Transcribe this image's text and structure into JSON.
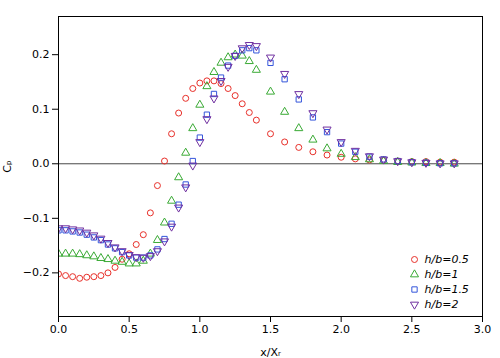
{
  "chart_data": {
    "type": "scatter",
    "xlabel": "x/Xᵣ",
    "ylabel": "Cₚ",
    "xlim": [
      0,
      3
    ],
    "ylim": [
      -0.28,
      0.27
    ],
    "xticks": [
      {
        "value": 0,
        "label": "0.0"
      },
      0.5,
      {
        "value": 1,
        "label": "1.0"
      },
      1.5,
      {
        "value": 2,
        "label": "2.0"
      },
      2.5,
      {
        "value": 3,
        "label": "3.0"
      }
    ],
    "yticks": [
      {
        "value": -0.2,
        "label": "−0.2"
      },
      {
        "value": -0.1,
        "label": "−0.1"
      },
      {
        "value": 0,
        "label": "0.0"
      },
      0.1,
      0.2
    ],
    "grid": false,
    "legend": "lower right",
    "hlines": [
      0
    ],
    "x": [
      0.0,
      0.05,
      0.1,
      0.15,
      0.2,
      0.25,
      0.3,
      0.35,
      0.4,
      0.45,
      0.5,
      0.55,
      0.6,
      0.65,
      0.7,
      0.75,
      0.8,
      0.85,
      0.9,
      0.95,
      1.0,
      1.05,
      1.1,
      1.15,
      1.2,
      1.25,
      1.3,
      1.35,
      1.4,
      1.5,
      1.6,
      1.7,
      1.8,
      1.9,
      2.0,
      2.1,
      2.2,
      2.3,
      2.4,
      2.5,
      2.6,
      2.7,
      2.8
    ],
    "series": [
      {
        "name": "h/b=0.5",
        "color": "#e8302a",
        "marker": "circle",
        "values": [
          -0.202,
          -0.205,
          -0.207,
          -0.21,
          -0.208,
          -0.207,
          -0.205,
          -0.2,
          -0.19,
          -0.175,
          -0.165,
          -0.148,
          -0.13,
          -0.09,
          -0.04,
          0.005,
          0.055,
          0.093,
          0.12,
          0.138,
          0.148,
          0.152,
          0.152,
          0.147,
          0.138,
          0.125,
          0.11,
          0.094,
          0.08,
          0.055,
          0.04,
          0.03,
          0.022,
          0.016,
          0.012,
          0.009,
          0.007,
          0.006,
          0.005,
          0.004,
          0.004,
          0.003,
          0.003
        ]
      },
      {
        "name": "h/b=1",
        "color": "#3aaa35",
        "marker": "triangle-up",
        "values": [
          -0.165,
          -0.165,
          -0.165,
          -0.166,
          -0.168,
          -0.17,
          -0.173,
          -0.175,
          -0.178,
          -0.18,
          -0.183,
          -0.183,
          -0.178,
          -0.165,
          -0.14,
          -0.108,
          -0.068,
          -0.025,
          0.02,
          0.065,
          0.108,
          0.142,
          0.168,
          0.185,
          0.195,
          0.2,
          0.198,
          0.188,
          0.172,
          0.132,
          0.095,
          0.065,
          0.044,
          0.028,
          0.018,
          0.012,
          0.008,
          0.005,
          0.003,
          0.002,
          0.001,
          0.001,
          0.0
        ]
      },
      {
        "name": "h/b=1.5",
        "color": "#3455db",
        "marker": "square",
        "values": [
          -0.122,
          -0.122,
          -0.124,
          -0.126,
          -0.13,
          -0.135,
          -0.14,
          -0.148,
          -0.155,
          -0.162,
          -0.168,
          -0.172,
          -0.172,
          -0.168,
          -0.157,
          -0.138,
          -0.11,
          -0.075,
          -0.038,
          0.005,
          0.048,
          0.09,
          0.128,
          0.158,
          0.18,
          0.198,
          0.208,
          0.212,
          0.208,
          0.185,
          0.155,
          0.118,
          0.085,
          0.058,
          0.037,
          0.022,
          0.013,
          0.008,
          0.005,
          0.003,
          0.002,
          0.001,
          0.001
        ]
      },
      {
        "name": "h/b=2",
        "color": "#7030a0",
        "marker": "triangle-down",
        "values": [
          -0.118,
          -0.118,
          -0.12,
          -0.122,
          -0.126,
          -0.131,
          -0.137,
          -0.145,
          -0.153,
          -0.16,
          -0.167,
          -0.171,
          -0.172,
          -0.169,
          -0.16,
          -0.142,
          -0.115,
          -0.08,
          -0.043,
          -0.003,
          0.04,
          0.082,
          0.12,
          0.152,
          0.178,
          0.198,
          0.212,
          0.218,
          0.216,
          0.195,
          0.165,
          0.128,
          0.093,
          0.063,
          0.04,
          0.024,
          0.014,
          0.008,
          0.005,
          0.003,
          0.002,
          0.001,
          0.001
        ]
      }
    ]
  }
}
